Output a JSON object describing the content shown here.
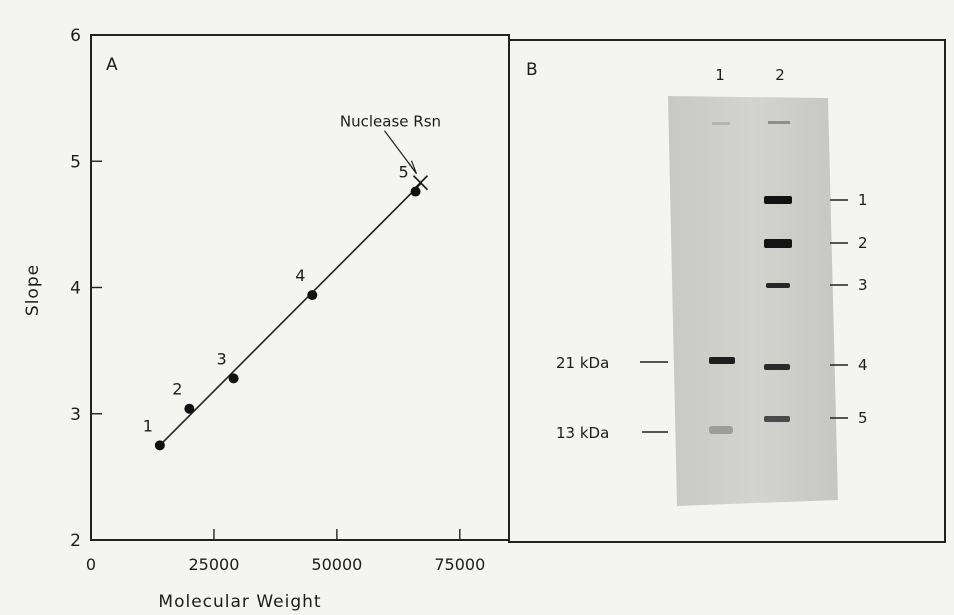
{
  "panels": {
    "a": {
      "label": "A"
    },
    "b": {
      "label": "B"
    }
  },
  "chart_data": {
    "type": "scatter",
    "title": "",
    "xlabel": "Molecular Weight",
    "ylabel": "Slope",
    "xlim": [
      0,
      85000
    ],
    "ylim": [
      2,
      6
    ],
    "xticks": [
      0,
      25000,
      50000,
      75000
    ],
    "yticks": [
      2,
      3,
      4,
      5,
      6
    ],
    "grid": false,
    "points": [
      {
        "label": "1",
        "x": 14000,
        "y": 2.75
      },
      {
        "label": "2",
        "x": 20000,
        "y": 3.04
      },
      {
        "label": "3",
        "x": 29000,
        "y": 3.28
      },
      {
        "label": "4",
        "x": 45000,
        "y": 3.94
      },
      {
        "label": "5",
        "x": 66000,
        "y": 4.76
      }
    ],
    "fit_line": {
      "x": [
        14000,
        67000
      ],
      "y": [
        2.75,
        4.82
      ]
    },
    "unknown": {
      "label": "Nuclease Rsn",
      "x": 67000,
      "y": 4.83
    }
  },
  "gel": {
    "lane_labels": [
      "1",
      "2"
    ],
    "marker_labels": [
      "1",
      "2",
      "3",
      "4",
      "5"
    ],
    "sample_labels": [
      "21 kDa",
      "13 kDa"
    ]
  }
}
